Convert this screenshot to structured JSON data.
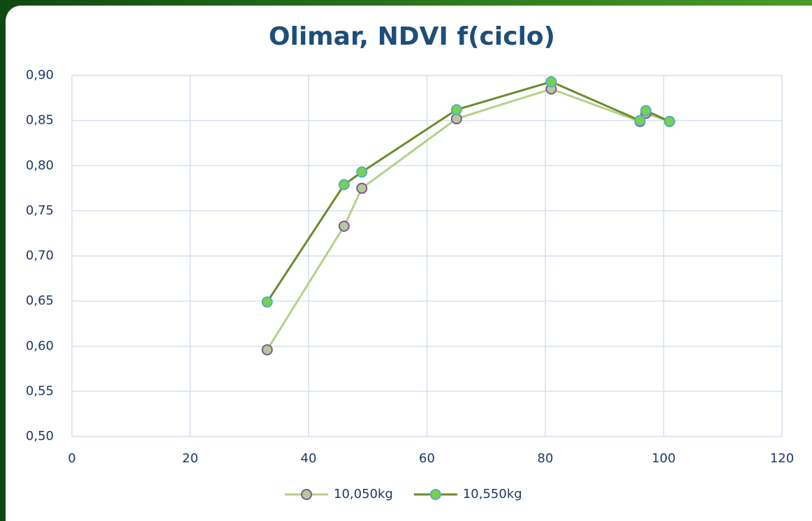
{
  "chart_data": {
    "type": "line",
    "title": "Olimar, NDVI f(ciclo)",
    "x": [
      33,
      46,
      49,
      65,
      81,
      96,
      97,
      101
    ],
    "series": [
      {
        "name": "10,050kg",
        "color": "#b5d08a",
        "marker_color": "#b9c79c",
        "marker_edge": "#7b5c8c",
        "values": [
          0.596,
          0.733,
          0.775,
          0.852,
          0.885,
          0.849,
          0.858,
          0.849
        ]
      },
      {
        "name": "10,550kg",
        "color": "#6b8a2a",
        "marker_color": "#7ccf4f",
        "marker_edge": "#4fb2c2",
        "values": [
          0.649,
          0.779,
          0.793,
          0.862,
          0.893,
          0.85,
          0.861,
          0.849
        ]
      }
    ],
    "xlim": [
      0,
      120
    ],
    "xticks": [
      0,
      20,
      40,
      60,
      80,
      100,
      120
    ],
    "ylim": [
      0.5,
      0.9
    ],
    "yticks": [
      {
        "value": 0.5,
        "label": "0,50"
      },
      {
        "value": 0.55,
        "label": "0,55"
      },
      {
        "value": 0.6,
        "label": "0,60"
      },
      {
        "value": 0.65,
        "label": "0,65"
      },
      {
        "value": 0.7,
        "label": "0,70"
      },
      {
        "value": 0.75,
        "label": "0,75"
      },
      {
        "value": 0.8,
        "label": "0,80"
      },
      {
        "value": 0.85,
        "label": "0,85"
      },
      {
        "value": 0.9,
        "label": "0,90"
      }
    ],
    "grid": true,
    "legend": "bottom"
  }
}
